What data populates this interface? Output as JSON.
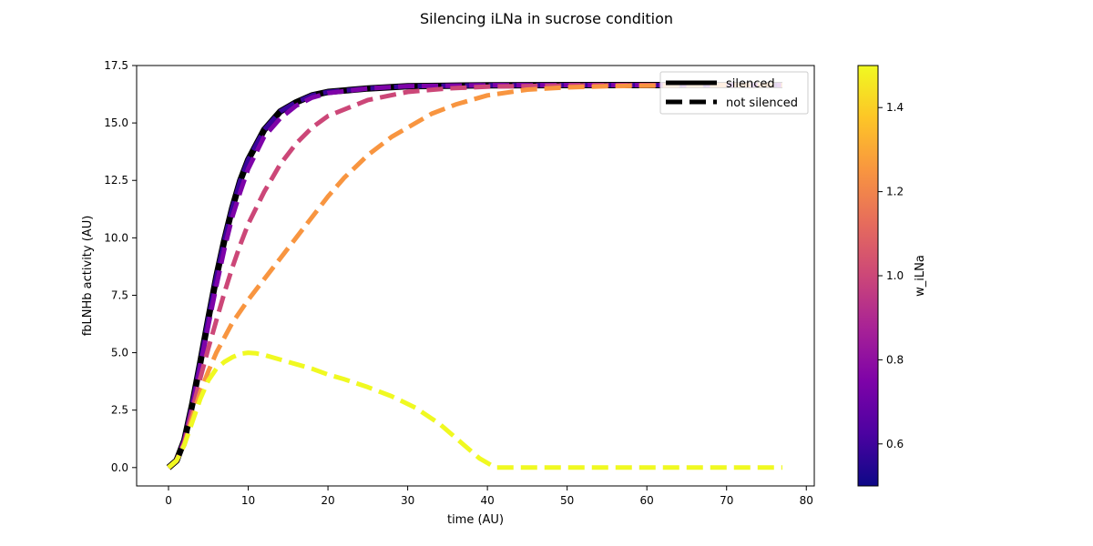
{
  "chart_data": {
    "type": "line",
    "title": "Silencing iLNa in sucrose condition",
    "xlabel": "time (AU)",
    "ylabel": "fbLNHb activity (AU)",
    "xlim": [
      -4,
      81
    ],
    "ylim": [
      -0.8,
      17.5
    ],
    "xticks": [
      0,
      10,
      20,
      30,
      40,
      50,
      60,
      70,
      80
    ],
    "yticks": [
      0.0,
      2.5,
      5.0,
      7.5,
      10.0,
      12.5,
      15.0,
      17.5
    ],
    "legend": {
      "position": "top-right",
      "entries": [
        "silenced",
        "not silenced"
      ]
    },
    "colorbar": {
      "label": "w_iLNa",
      "range": [
        0.5,
        1.5
      ],
      "ticks": [
        0.6,
        0.8,
        1.0,
        1.2,
        1.4
      ],
      "colormap": "plasma"
    },
    "silenced": {
      "color": "#000000",
      "x": [
        0,
        1,
        2,
        3,
        4,
        5,
        6,
        7,
        8,
        9,
        10,
        12,
        14,
        16,
        18,
        20,
        25,
        30,
        35,
        40,
        50,
        60,
        70,
        77
      ],
      "y": [
        0,
        0.3,
        1.2,
        2.8,
        4.6,
        6.5,
        8.3,
        9.9,
        11.3,
        12.5,
        13.4,
        14.7,
        15.5,
        15.9,
        16.2,
        16.35,
        16.5,
        16.6,
        16.62,
        16.64,
        16.65,
        16.65,
        16.65,
        16.65
      ]
    },
    "series": [
      {
        "w": 0.6,
        "color": "#3a049a",
        "x": [
          0,
          1,
          2,
          3,
          4,
          5,
          6,
          7,
          8,
          9,
          10,
          12,
          14,
          16,
          18,
          20,
          25,
          30,
          35,
          40,
          50,
          60,
          70,
          77
        ],
        "y": [
          0,
          0.3,
          1.2,
          2.8,
          4.6,
          6.5,
          8.3,
          9.9,
          11.3,
          12.5,
          13.4,
          14.7,
          15.5,
          15.9,
          16.2,
          16.35,
          16.5,
          16.6,
          16.62,
          16.64,
          16.65,
          16.65,
          16.65,
          16.65
        ]
      },
      {
        "w": 0.75,
        "color": "#7e03a8",
        "x": [
          0,
          1,
          2,
          3,
          4,
          5,
          6,
          7,
          8,
          9,
          10,
          12,
          14,
          16,
          18,
          20,
          25,
          30,
          35,
          40,
          50,
          60,
          70,
          77
        ],
        "y": [
          0,
          0.3,
          1.2,
          2.7,
          4.4,
          6.2,
          7.9,
          9.5,
          10.9,
          12.0,
          13.0,
          14.4,
          15.2,
          15.75,
          16.1,
          16.3,
          16.5,
          16.6,
          16.62,
          16.64,
          16.65,
          16.65,
          16.65,
          16.65
        ]
      },
      {
        "w": 1.0,
        "color": "#cc4778",
        "x": [
          0,
          1,
          2,
          3,
          4,
          5,
          6,
          7,
          8,
          9,
          10,
          12,
          14,
          16,
          18,
          20,
          25,
          30,
          35,
          40,
          50,
          60,
          70,
          77
        ],
        "y": [
          0,
          0.3,
          1.1,
          2.5,
          3.9,
          5.2,
          6.4,
          7.6,
          8.7,
          9.7,
          10.6,
          12.0,
          13.2,
          14.1,
          14.8,
          15.3,
          16.0,
          16.35,
          16.5,
          16.58,
          16.63,
          16.65,
          16.65,
          16.65
        ]
      },
      {
        "w": 1.25,
        "color": "#f89540",
        "x": [
          0,
          1,
          2,
          3,
          4,
          5,
          6,
          8,
          10,
          12,
          14,
          16,
          18,
          20,
          22,
          25,
          28,
          30,
          33,
          36,
          40,
          45,
          50,
          55,
          60,
          65,
          70,
          77
        ],
        "y": [
          0,
          0.3,
          1.0,
          2.2,
          3.3,
          4.2,
          5.0,
          6.3,
          7.3,
          8.2,
          9.1,
          10.0,
          10.9,
          11.8,
          12.6,
          13.6,
          14.4,
          14.8,
          15.4,
          15.8,
          16.2,
          16.45,
          16.55,
          16.6,
          16.62,
          16.64,
          16.65,
          16.65
        ]
      },
      {
        "w": 1.5,
        "color": "#f0f921",
        "x": [
          0,
          1,
          2,
          3,
          4,
          5,
          6,
          7,
          8,
          9,
          10,
          11,
          12,
          14,
          16,
          18,
          20,
          22,
          25,
          28,
          31,
          34,
          37,
          39,
          41,
          43,
          50,
          60,
          70,
          77
        ],
        "y": [
          0,
          0.3,
          1.0,
          2.0,
          3.0,
          3.8,
          4.3,
          4.6,
          4.8,
          4.95,
          5.0,
          4.97,
          4.9,
          4.7,
          4.5,
          4.3,
          4.05,
          3.85,
          3.5,
          3.1,
          2.6,
          1.9,
          1.0,
          0.4,
          0.0,
          0.0,
          0.0,
          0.0,
          0.0,
          0.0
        ]
      }
    ]
  }
}
